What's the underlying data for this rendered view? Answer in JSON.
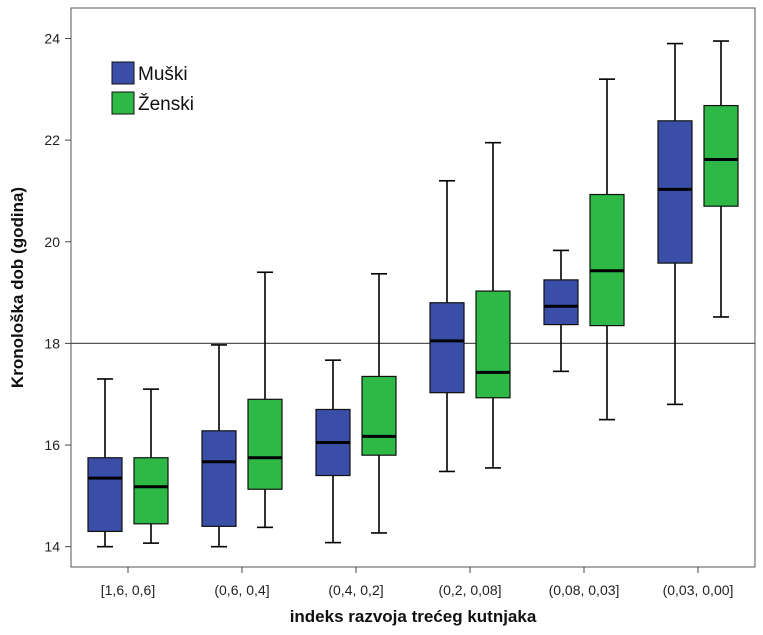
{
  "chart_data": {
    "type": "boxplot",
    "title": "",
    "xlabel": "indeks razvoja trećeg kutnjaka",
    "ylabel": "Kronološka dob (godina)",
    "ylim": [
      13.6,
      24.6
    ],
    "yticks": [
      14,
      16,
      18,
      20,
      22,
      24
    ],
    "reference_line": 18,
    "legend_position": "top-left",
    "categories": [
      "[1,6,  0,6]",
      "(0,6,  0,4]",
      "(0,4,  0,2]",
      "(0,2,  0,08]",
      "(0,08,  0,03]",
      "(0,03,  0,00]"
    ],
    "series": [
      {
        "name": "Muški",
        "color": "#3a4ea8",
        "boxes": [
          {
            "min": 14.0,
            "q1": 14.3,
            "median": 15.35,
            "q3": 15.75,
            "max": 17.3
          },
          {
            "min": 14.0,
            "q1": 14.4,
            "median": 15.67,
            "q3": 16.28,
            "max": 17.97
          },
          {
            "min": 14.08,
            "q1": 15.4,
            "median": 16.05,
            "q3": 16.7,
            "max": 17.67
          },
          {
            "min": 15.48,
            "q1": 17.03,
            "median": 18.05,
            "q3": 18.8,
            "max": 21.2
          },
          {
            "min": 17.45,
            "q1": 18.37,
            "median": 18.73,
            "q3": 19.25,
            "max": 19.83
          },
          {
            "min": 16.8,
            "q1": 19.58,
            "median": 21.03,
            "q3": 22.38,
            "max": 23.9
          }
        ]
      },
      {
        "name": "Ženski",
        "color": "#2eb846",
        "boxes": [
          {
            "min": 14.07,
            "q1": 14.45,
            "median": 15.18,
            "q3": 15.75,
            "max": 17.1
          },
          {
            "min": 14.38,
            "q1": 15.13,
            "median": 15.75,
            "q3": 16.9,
            "max": 19.4
          },
          {
            "min": 14.27,
            "q1": 15.8,
            "median": 16.17,
            "q3": 17.35,
            "max": 19.37
          },
          {
            "min": 15.55,
            "q1": 16.93,
            "median": 17.43,
            "q3": 19.03,
            "max": 21.95
          },
          {
            "min": 16.5,
            "q1": 18.35,
            "median": 19.43,
            "q3": 20.93,
            "max": 23.2
          },
          {
            "min": 18.52,
            "q1": 20.7,
            "median": 21.62,
            "q3": 22.68,
            "max": 23.95
          }
        ]
      }
    ]
  }
}
